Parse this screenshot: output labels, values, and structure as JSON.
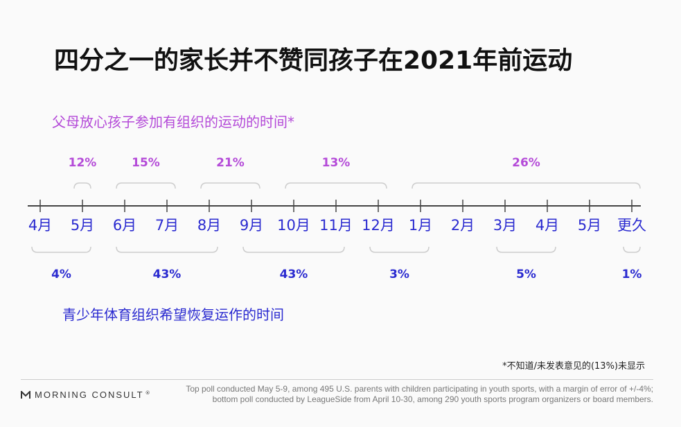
{
  "title": "四分之一的家长并不赞同孩子在2021年前运动",
  "footnote": "*不知道/未发表意见的(13%)未显示",
  "brand": {
    "name": "MORNING CONSULT",
    "trademark": "®"
  },
  "source": {
    "line1": "Top poll conducted May 5-9, among 495 U.S. parents with children participating in youth sports, with a margin of error of +/-4%;",
    "line2": "bottom poll conducted by LeagueSide from April 10-30, among 290 youth sports program organizers or board members."
  },
  "colors": {
    "top": "#b44ad8",
    "bottom": "#2a2ad0",
    "bracket": "#cccccc",
    "axis": "#444444"
  },
  "chart_data": {
    "type": "timeline",
    "ticks": [
      "4月",
      "5月",
      "6月",
      "7月",
      "8月",
      "9月",
      "10月",
      "11月",
      "12月",
      "1月",
      "2月",
      "3月",
      "4月",
      "5月",
      "更久"
    ],
    "top_series": {
      "name": "父母放心孩子参加有组织的运动的时间*",
      "segments": [
        {
          "from": 1,
          "to": 1,
          "label": "12%",
          "value": 12
        },
        {
          "from": 2,
          "to": 3,
          "label": "15%",
          "value": 15
        },
        {
          "from": 4,
          "to": 5,
          "label": "21%",
          "value": 21
        },
        {
          "from": 6,
          "to": 8,
          "label": "13%",
          "value": 13
        },
        {
          "from": 9,
          "to": 14,
          "label": "26%",
          "value": 26
        }
      ]
    },
    "bottom_series": {
      "name": "青少年体育组织希望恢复运作的时间",
      "segments": [
        {
          "from": 0,
          "to": 1,
          "label": "4%",
          "value": 4
        },
        {
          "from": 2,
          "to": 4,
          "label": "43%",
          "value": 43
        },
        {
          "from": 5,
          "to": 7,
          "label": "43%",
          "value": 43
        },
        {
          "from": 8,
          "to": 9,
          "label": "3%",
          "value": 3
        },
        {
          "from": 11,
          "to": 12,
          "label": "5%",
          "value": 5
        },
        {
          "from": 14,
          "to": 14,
          "label": "1%",
          "value": 1
        }
      ]
    }
  }
}
